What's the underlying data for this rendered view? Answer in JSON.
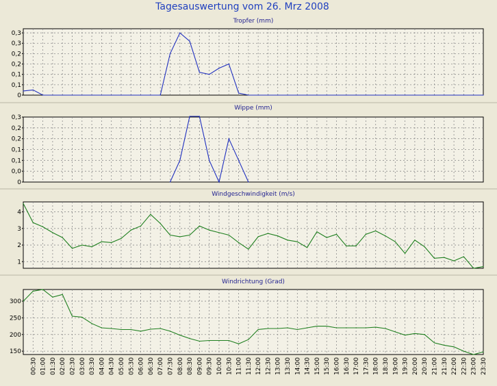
{
  "page": {
    "title": "Tagesauswertung vom 26. Mrz 2008"
  },
  "chart_data": [
    {
      "type": "line",
      "title": "Tropfer (mm)",
      "color": "#1f2fbf",
      "ylim": [
        0,
        0.32
      ],
      "yticks": [
        0,
        0.05,
        0.1,
        0.15,
        0.2,
        0.25,
        0.3
      ],
      "ytick_labels": [
        "0",
        "0,1",
        "0,1",
        "0,2",
        "0,2",
        "0,3",
        "0,3"
      ],
      "grid": true,
      "x": [
        "00:00",
        "00:30",
        "01:00",
        "01:30",
        "02:00",
        "02:30",
        "03:00",
        "03:30",
        "04:00",
        "04:30",
        "05:00",
        "05:30",
        "06:00",
        "06:30",
        "07:00",
        "07:30",
        "08:00",
        "08:30",
        "09:00",
        "09:30",
        "10:00",
        "10:30",
        "11:00",
        "11:30",
        "12:00",
        "12:30",
        "13:00",
        "13:30",
        "14:00",
        "14:30",
        "15:00",
        "15:30",
        "16:00",
        "16:30",
        "17:00",
        "17:30",
        "18:00",
        "18:30",
        "19:00",
        "19:30",
        "20:00",
        "20:30",
        "21:00",
        "21:30",
        "22:00",
        "22:30",
        "23:00",
        "23:30"
      ],
      "values": [
        0.02,
        0.025,
        0,
        0,
        0,
        0,
        0,
        0,
        0,
        0,
        0,
        0,
        0,
        0,
        0,
        0.2,
        0.3,
        0.26,
        0.11,
        0.1,
        0.13,
        0.15,
        0.01,
        0,
        0,
        0,
        0,
        0,
        0,
        0,
        0,
        0,
        0,
        0,
        0,
        0,
        0,
        0,
        0,
        0,
        0,
        0,
        0,
        0,
        0,
        0,
        0,
        0
      ]
    },
    {
      "type": "line",
      "title": "Wippe (mm)",
      "color": "#1f2fbf",
      "ylim": [
        0,
        0.3
      ],
      "yticks": [
        0,
        0.05,
        0.1,
        0.15,
        0.2,
        0.25,
        0.3
      ],
      "ytick_labels": [
        "0",
        "0,0",
        "0,1",
        "0,1",
        "0,2",
        "0,2",
        "0,3"
      ],
      "grid": true,
      "x": [
        "00:00",
        "00:30",
        "01:00",
        "01:30",
        "02:00",
        "02:30",
        "03:00",
        "03:30",
        "04:00",
        "04:30",
        "05:00",
        "05:30",
        "06:00",
        "06:30",
        "07:00",
        "07:30",
        "08:00",
        "08:30",
        "09:00",
        "09:30",
        "10:00",
        "10:30",
        "11:00",
        "11:30",
        "12:00",
        "12:30",
        "13:00",
        "13:30",
        "14:00",
        "14:30",
        "15:00",
        "15:30",
        "16:00",
        "16:30",
        "17:00",
        "17:30",
        "18:00",
        "18:30",
        "19:00",
        "19:30",
        "20:00",
        "20:30",
        "21:00",
        "21:30",
        "22:00",
        "22:30",
        "23:00",
        "23:30"
      ],
      "values": [
        null,
        null,
        null,
        null,
        null,
        null,
        null,
        null,
        null,
        null,
        null,
        null,
        null,
        null,
        null,
        0,
        0.1,
        0.31,
        0.31,
        0.1,
        0,
        0.2,
        0.1,
        0,
        null,
        null,
        null,
        null,
        null,
        null,
        null,
        null,
        null,
        null,
        null,
        null,
        null,
        null,
        null,
        null,
        null,
        null,
        null,
        null,
        null,
        null,
        null,
        null
      ]
    },
    {
      "type": "line",
      "title": "Windgeschwindigkeit (m/s)",
      "color": "#1f7f1f",
      "ylim": [
        0.6,
        4.6
      ],
      "yticks": [
        1,
        2,
        3,
        4
      ],
      "ytick_labels": [
        "1",
        "2",
        "3",
        "4"
      ],
      "grid": true,
      "x": [
        "00:00",
        "00:30",
        "01:00",
        "01:30",
        "02:00",
        "02:30",
        "03:00",
        "03:30",
        "04:00",
        "04:30",
        "05:00",
        "05:30",
        "06:00",
        "06:30",
        "07:00",
        "07:30",
        "08:00",
        "08:30",
        "09:00",
        "09:30",
        "10:00",
        "10:30",
        "11:00",
        "11:30",
        "12:00",
        "12:30",
        "13:00",
        "13:30",
        "14:00",
        "14:30",
        "15:00",
        "15:30",
        "16:00",
        "16:30",
        "17:00",
        "17:30",
        "18:00",
        "18:30",
        "19:00",
        "19:30",
        "20:00",
        "20:30",
        "21:00",
        "21:30",
        "22:00",
        "22:30",
        "23:00",
        "23:30"
      ],
      "values": [
        4.5,
        3.35,
        3.1,
        2.75,
        2.45,
        1.8,
        2.0,
        1.9,
        2.2,
        2.15,
        2.4,
        2.9,
        3.15,
        3.85,
        3.3,
        2.6,
        2.5,
        2.6,
        3.15,
        2.9,
        2.75,
        2.6,
        2.15,
        1.75,
        2.5,
        2.7,
        2.55,
        2.3,
        2.2,
        1.85,
        2.8,
        2.45,
        2.65,
        1.95,
        1.95,
        2.65,
        2.85,
        2.55,
        2.2,
        1.5,
        2.3,
        1.9,
        1.2,
        1.25,
        1.05,
        1.3,
        0.6,
        0.7
      ]
    },
    {
      "type": "line",
      "title": "Windrichtung (Grad)",
      "color": "#1f7f1f",
      "ylim": [
        140,
        335
      ],
      "yticks": [
        150,
        200,
        250,
        300
      ],
      "ytick_labels": [
        "150",
        "200",
        "250",
        "300"
      ],
      "grid": true,
      "x": [
        "00:00",
        "00:30",
        "01:00",
        "01:30",
        "02:00",
        "02:30",
        "03:00",
        "03:30",
        "04:00",
        "04:30",
        "05:00",
        "05:30",
        "06:00",
        "06:30",
        "07:00",
        "07:30",
        "08:00",
        "08:30",
        "09:00",
        "09:30",
        "10:00",
        "10:30",
        "11:00",
        "11:30",
        "12:00",
        "12:30",
        "13:00",
        "13:30",
        "14:00",
        "14:30",
        "15:00",
        "15:30",
        "16:00",
        "16:30",
        "17:00",
        "17:30",
        "18:00",
        "18:30",
        "19:00",
        "19:30",
        "20:00",
        "20:30",
        "21:00",
        "21:30",
        "22:00",
        "22:30",
        "23:00",
        "23:30"
      ],
      "values": [
        300,
        330,
        335,
        312,
        320,
        255,
        252,
        233,
        220,
        218,
        215,
        215,
        210,
        216,
        218,
        210,
        198,
        188,
        180,
        182,
        182,
        182,
        172,
        185,
        215,
        218,
        218,
        220,
        215,
        220,
        225,
        225,
        220,
        220,
        220,
        220,
        222,
        218,
        208,
        198,
        203,
        200,
        175,
        168,
        163,
        150,
        140,
        148
      ],
      "xtick_labels": [
        "00:30",
        "01:00",
        "01:30",
        "02:00",
        "02:30",
        "03:00",
        "03:30",
        "04:00",
        "04:30",
        "05:00",
        "05:30",
        "06:00",
        "06:30",
        "07:00",
        "07:30",
        "08:00",
        "08:30",
        "09:00",
        "09:30",
        "10:00",
        "10:30",
        "11:00",
        "11:30",
        "12:00",
        "12:30",
        "13:00",
        "13:30",
        "14:00",
        "14:30",
        "15:00",
        "15:30",
        "16:00",
        "16:30",
        "17:00",
        "17:30",
        "18:00",
        "18:30",
        "19:00",
        "19:30",
        "20:00",
        "20:30",
        "21:00",
        "21:30",
        "22:00",
        "22:30",
        "23:00",
        "23:30"
      ]
    }
  ]
}
